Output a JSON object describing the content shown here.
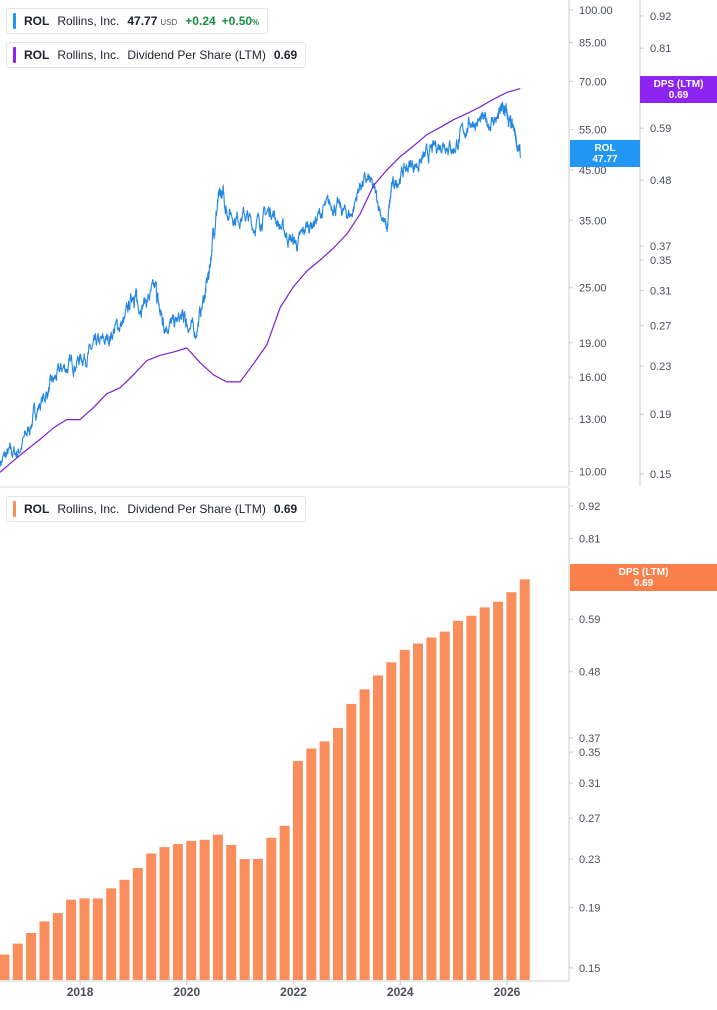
{
  "legends": {
    "price": {
      "symbol": "ROL",
      "name": "Rollins, Inc.",
      "price": "47.77",
      "currency": "USD",
      "change": "+0.24",
      "change_pct": "+0.50",
      "pct_sign": "%"
    },
    "dps_top": {
      "symbol": "ROL",
      "name": "Rollins, Inc.",
      "metric": "Dividend Per Share (LTM)",
      "value": "0.69"
    },
    "dps_bottom": {
      "symbol": "ROL",
      "name": "Rollins, Inc.",
      "metric": "Dividend Per Share (LTM)",
      "value": "0.69"
    }
  },
  "tags": {
    "price": {
      "label": "ROL",
      "value": "47.77"
    },
    "dps_top": {
      "label": "DPS (LTM)",
      "value": "0.69"
    },
    "dps_bottom": {
      "label": "DPS (LTM)",
      "value": "0.69"
    }
  },
  "colors": {
    "price_line": "#2185e3",
    "dps_line": "#7b1fd2",
    "dps_tag": "#8e24ef",
    "bars": "#f98d5b",
    "bar_tag": "#f9804a",
    "price_tag": "#2196f3",
    "positive": "#1a8d43",
    "axis_text": "#4a4f5a"
  },
  "chart_data": [
    {
      "type": "line",
      "panel": "top",
      "x_range": [
        "2016-07",
        "2026-10"
      ],
      "y_scale": "log",
      "ylim_left": [
        9.3,
        105
      ],
      "ylim_right": [
        0.143,
        0.98
      ],
      "left_ticks": [
        "100.00",
        "85.00",
        "70.00",
        "55.00",
        "45.00",
        "35.00",
        "25.00",
        "19.00",
        "16.00",
        "13.00",
        "10.00"
      ],
      "right_ticks": [
        "0.92",
        "0.81",
        "0.70",
        "0.59",
        "0.48",
        "0.37",
        "0.35",
        "0.31",
        "0.27",
        "0.23",
        "0.19",
        "0.15"
      ],
      "series": [
        {
          "name": "ROL",
          "axis": "left",
          "points": [
            [
              "2016-07",
              10.5
            ],
            [
              "2016-09",
              10.9
            ],
            [
              "2016-11",
              11.0
            ],
            [
              "2017-01",
              12.0
            ],
            [
              "2017-03",
              13.5
            ],
            [
              "2017-05",
              14.5
            ],
            [
              "2017-07",
              15.6
            ],
            [
              "2017-09",
              16.7
            ],
            [
              "2017-11",
              17.0
            ],
            [
              "2018-01",
              17.6
            ],
            [
              "2018-03",
              18.0
            ],
            [
              "2018-05",
              18.8
            ],
            [
              "2018-07",
              19.2
            ],
            [
              "2018-09",
              20.5
            ],
            [
              "2018-11",
              21.0
            ],
            [
              "2019-01",
              24.5
            ],
            [
              "2019-02",
              23.0
            ],
            [
              "2019-04",
              23.5
            ],
            [
              "2019-06",
              24.8
            ],
            [
              "2019-07",
              22.0
            ],
            [
              "2019-08",
              21.0
            ],
            [
              "2019-10",
              20.8
            ],
            [
              "2019-12",
              21.5
            ],
            [
              "2020-01",
              21.0
            ],
            [
              "2020-03",
              20.0
            ],
            [
              "2020-05",
              24.0
            ],
            [
              "2020-06",
              27.0
            ],
            [
              "2020-07",
              33.0
            ],
            [
              "2020-08",
              38.0
            ],
            [
              "2020-09",
              40.0
            ],
            [
              "2020-10",
              37.0
            ],
            [
              "2020-12",
              35.5
            ],
            [
              "2021-02",
              36.0
            ],
            [
              "2021-04",
              34.0
            ],
            [
              "2021-06",
              35.5
            ],
            [
              "2021-08",
              37.0
            ],
            [
              "2021-10",
              34.0
            ],
            [
              "2021-12",
              32.0
            ],
            [
              "2022-02",
              31.0
            ],
            [
              "2022-04",
              34.0
            ],
            [
              "2022-06",
              35.0
            ],
            [
              "2022-08",
              37.0
            ],
            [
              "2022-10",
              38.0
            ],
            [
              "2022-12",
              36.5
            ],
            [
              "2023-02",
              36.0
            ],
            [
              "2023-04",
              42.0
            ],
            [
              "2023-06",
              42.5
            ],
            [
              "2023-08",
              38.5
            ],
            [
              "2023-10",
              33.0
            ],
            [
              "2023-11",
              40.5
            ],
            [
              "2024-01",
              44.0
            ],
            [
              "2024-03",
              46.0
            ],
            [
              "2024-05",
              46.5
            ],
            [
              "2024-07",
              48.0
            ],
            [
              "2024-09",
              50.5
            ],
            [
              "2024-11",
              52.0
            ],
            [
              "2025-01",
              50.0
            ],
            [
              "2025-03",
              54.0
            ],
            [
              "2025-05",
              57.5
            ],
            [
              "2025-07",
              57.0
            ],
            [
              "2025-09",
              57.0
            ],
            [
              "2025-11",
              58.5
            ],
            [
              "2025-12",
              61.0
            ],
            [
              "2026-01",
              59.0
            ],
            [
              "2026-02",
              55.0
            ],
            [
              "2026-03",
              53.0
            ],
            [
              "2026-04",
              47.77
            ]
          ]
        },
        {
          "name": "DPS (LTM)",
          "axis": "right",
          "points": [
            [
              "2016-07",
              0.151
            ],
            [
              "2016-10",
              0.158
            ],
            [
              "2017-01",
              0.165
            ],
            [
              "2017-04",
              0.172
            ],
            [
              "2017-07",
              0.18
            ],
            [
              "2017-10",
              0.186
            ],
            [
              "2018-01",
              0.186
            ],
            [
              "2018-04",
              0.195
            ],
            [
              "2018-07",
              0.206
            ],
            [
              "2018-10",
              0.211
            ],
            [
              "2019-01",
              0.222
            ],
            [
              "2019-04",
              0.235
            ],
            [
              "2019-07",
              0.24
            ],
            [
              "2019-10",
              0.243
            ],
            [
              "2020-01",
              0.247
            ],
            [
              "2020-04",
              0.233
            ],
            [
              "2020-07",
              0.222
            ],
            [
              "2020-10",
              0.216
            ],
            [
              "2021-01",
              0.216
            ],
            [
              "2021-04",
              0.232
            ],
            [
              "2021-07",
              0.25
            ],
            [
              "2021-10",
              0.29
            ],
            [
              "2022-01",
              0.315
            ],
            [
              "2022-04",
              0.335
            ],
            [
              "2022-07",
              0.35
            ],
            [
              "2022-10",
              0.367
            ],
            [
              "2023-01",
              0.388
            ],
            [
              "2023-04",
              0.42
            ],
            [
              "2023-07",
              0.47
            ],
            [
              "2023-10",
              0.5
            ],
            [
              "2024-01",
              0.527
            ],
            [
              "2024-04",
              0.55
            ],
            [
              "2024-07",
              0.575
            ],
            [
              "2024-10",
              0.592
            ],
            [
              "2025-01",
              0.61
            ],
            [
              "2025-04",
              0.625
            ],
            [
              "2025-07",
              0.642
            ],
            [
              "2025-10",
              0.662
            ],
            [
              "2026-01",
              0.68
            ],
            [
              "2026-04",
              0.69
            ]
          ]
        }
      ]
    },
    {
      "type": "bar",
      "panel": "bottom",
      "name": "DPS (LTM)",
      "y_scale": "log",
      "ylim": [
        0.143,
        0.98
      ],
      "ticks": [
        "0.92",
        "0.81",
        "0.70",
        "0.59",
        "0.48",
        "0.37",
        "0.35",
        "0.31",
        "0.27",
        "0.23",
        "0.19",
        "0.15"
      ],
      "x_tick_labels": [
        "2018",
        "2020",
        "2022",
        "2024",
        "2026"
      ],
      "categories": [
        "2016Q3",
        "2016Q4",
        "2017Q1",
        "2017Q2",
        "2017Q3",
        "2017Q4",
        "2018Q1",
        "2018Q2",
        "2018Q3",
        "2018Q4",
        "2019Q1",
        "2019Q2",
        "2019Q3",
        "2019Q4",
        "2020Q1",
        "2020Q2",
        "2020Q3",
        "2020Q4",
        "2021Q1",
        "2021Q2",
        "2021Q3",
        "2021Q4",
        "2022Q1",
        "2022Q2",
        "2022Q3",
        "2022Q4",
        "2023Q1",
        "2023Q2",
        "2023Q3",
        "2023Q4",
        "2024Q1",
        "2024Q2",
        "2024Q3",
        "2024Q4",
        "2025Q1",
        "2025Q2",
        "2025Q3",
        "2025Q4",
        "2026Q1",
        "2026Q2"
      ],
      "values": [
        0.158,
        0.165,
        0.172,
        0.18,
        0.186,
        0.196,
        0.197,
        0.197,
        0.205,
        0.212,
        0.222,
        0.235,
        0.241,
        0.244,
        0.247,
        0.248,
        0.253,
        0.243,
        0.23,
        0.23,
        0.25,
        0.262,
        0.338,
        0.355,
        0.365,
        0.385,
        0.423,
        0.448,
        0.473,
        0.498,
        0.523,
        0.536,
        0.549,
        0.562,
        0.586,
        0.598,
        0.618,
        0.632,
        0.656,
        0.69
      ]
    }
  ]
}
